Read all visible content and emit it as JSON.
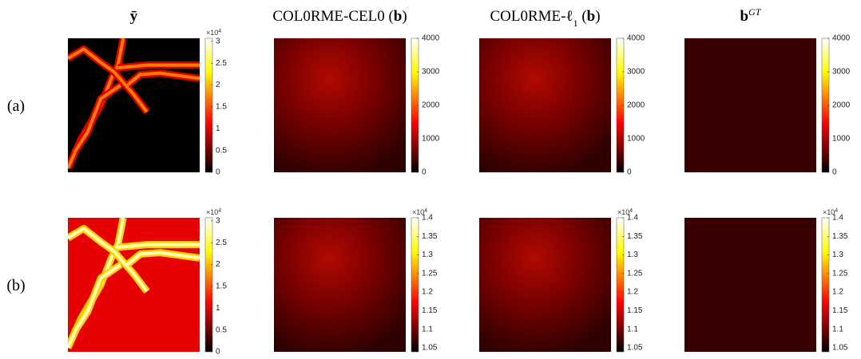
{
  "columns": [
    {
      "title": [
        {
          "text": "ȳ",
          "bold": true
        }
      ]
    },
    {
      "title": [
        {
          "text": "COL0RME-CEL0 ("
        },
        {
          "text": "b",
          "bold": true
        },
        {
          "text": ")"
        }
      ]
    },
    {
      "title": [
        {
          "text": "COL0RME-ℓ"
        },
        {
          "text": "1",
          "sub": true
        },
        {
          "text": " ("
        },
        {
          "text": "b",
          "bold": true
        },
        {
          "text": ")"
        }
      ]
    },
    {
      "title": [
        {
          "text": "b",
          "bold": true
        },
        {
          "text": "GT",
          "sup": true,
          "italic": true
        }
      ]
    }
  ],
  "rows": [
    {
      "label": "(a)",
      "panels": [
        {
          "colorbar": {
            "lim": [
              0,
              3.07
            ],
            "ticks": [
              0,
              0.5,
              1,
              1.5,
              2,
              2.5,
              3
            ],
            "multiplier": [
              {
                "text": "×10"
              },
              {
                "text": "4",
                "sup": true
              }
            ]
          }
        },
        {
          "colorbar": {
            "lim": [
              0,
              4000
            ],
            "ticks": [
              0,
              1000,
              2000,
              3000,
              4000
            ]
          }
        },
        {
          "colorbar": {
            "lim": [
              0,
              4000
            ],
            "ticks": [
              0,
              1000,
              2000,
              3000,
              4000
            ]
          }
        },
        {
          "colorbar": {
            "lim": [
              0,
              4000
            ],
            "ticks": [
              0,
              1000,
              2000,
              3000,
              4000
            ]
          }
        }
      ]
    },
    {
      "label": "(b)",
      "panels": [
        {
          "colorbar": {
            "lim": [
              0,
              3.07
            ],
            "ticks": [
              0,
              0.5,
              1,
              1.5,
              2,
              2.5,
              3
            ],
            "multiplier": [
              {
                "text": "×10"
              },
              {
                "text": "4",
                "sup": true
              }
            ]
          }
        },
        {
          "colorbar": {
            "lim": [
              1.039,
              1.4
            ],
            "ticks": [
              1.05,
              1.1,
              1.15,
              1.2,
              1.25,
              1.3,
              1.35,
              1.4
            ],
            "multiplier": [
              {
                "text": "×10"
              },
              {
                "text": "4",
                "sup": true
              }
            ]
          }
        },
        {
          "colorbar": {
            "lim": [
              1.039,
              1.4
            ],
            "ticks": [
              1.05,
              1.1,
              1.15,
              1.2,
              1.25,
              1.3,
              1.35,
              1.4
            ],
            "multiplier": [
              {
                "text": "×10"
              },
              {
                "text": "4",
                "sup": true
              }
            ]
          }
        },
        {
          "colorbar": {
            "lim": [
              1.039,
              1.4
            ],
            "ticks": [
              1.05,
              1.1,
              1.15,
              1.2,
              1.25,
              1.3,
              1.35,
              1.4
            ],
            "multiplier": [
              {
                "text": "×10"
              },
              {
                "text": "4",
                "sup": true
              }
            ]
          }
        }
      ]
    }
  ]
}
